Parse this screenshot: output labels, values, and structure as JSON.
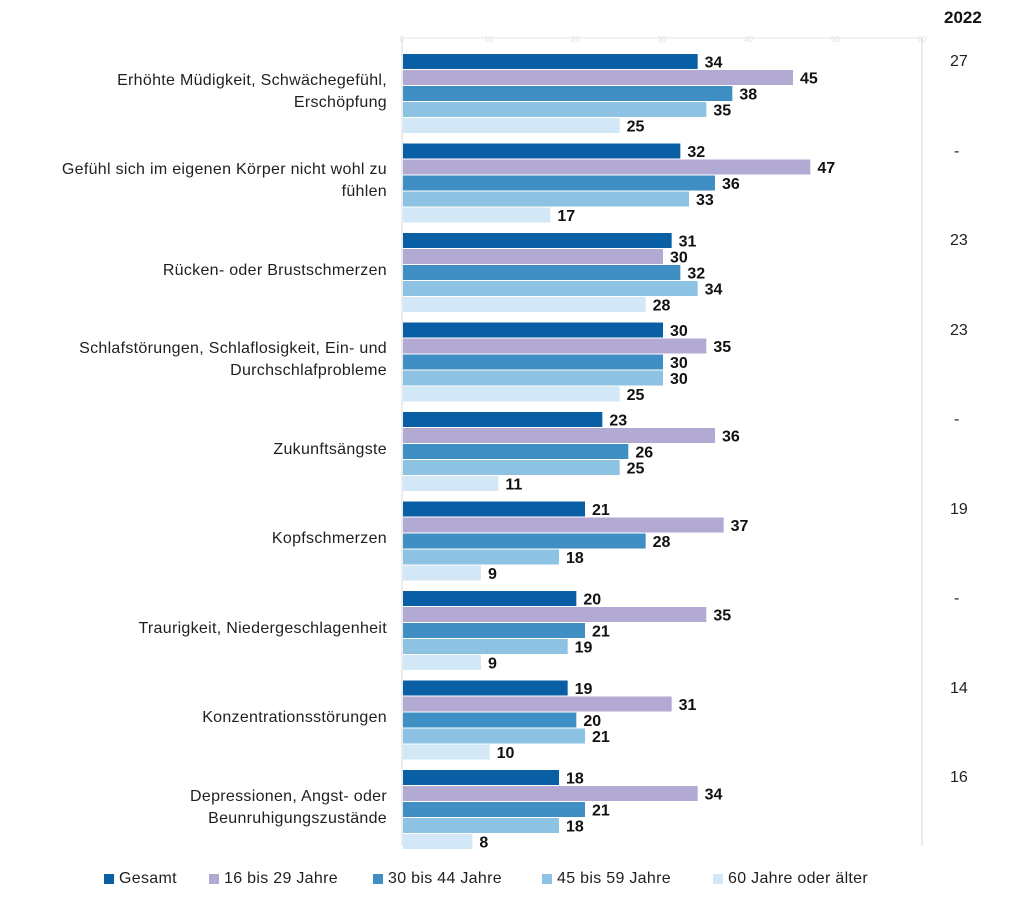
{
  "chart_data": {
    "type": "bar",
    "orientation": "horizontal",
    "title": "",
    "xlabel": "",
    "ylabel": "",
    "xlim": [
      0,
      60
    ],
    "x_ticks": [
      "0",
      "10",
      "20",
      "30",
      "40",
      "50",
      "60"
    ],
    "categories": [
      [
        "Erhöhte Müdigkeit, Schwächegefühl,",
        "Erschöpfung"
      ],
      [
        "Gefühl sich im eigenen Körper nicht wohl zu",
        "fühlen"
      ],
      [
        "Rücken- oder Brustschmerzen"
      ],
      [
        "Schlafstörungen, Schlaflosigkeit, Ein- und",
        "Durchschlafprobleme"
      ],
      [
        "Zukunftsängste"
      ],
      [
        "Kopfschmerzen"
      ],
      [
        "Traurigkeit, Niedergeschlagenheit"
      ],
      [
        "Konzentrationsstörungen"
      ],
      [
        "Depressionen, Angst- oder",
        "Beunruhigungszustände"
      ]
    ],
    "series": [
      {
        "name": "Gesamt",
        "color": "#0a5fa4",
        "values": [
          34,
          32,
          31,
          30,
          23,
          21,
          20,
          19,
          18
        ]
      },
      {
        "name": "16 bis 29 Jahre",
        "color": "#b3aad4",
        "values": [
          45,
          47,
          30,
          35,
          36,
          37,
          35,
          31,
          34
        ]
      },
      {
        "name": "30 bis 44 Jahre",
        "color": "#3f8fc4",
        "values": [
          38,
          36,
          32,
          30,
          26,
          28,
          21,
          20,
          21
        ]
      },
      {
        "name": "45 bis 59 Jahre",
        "color": "#8ec2e2",
        "values": [
          35,
          33,
          34,
          30,
          25,
          18,
          19,
          21,
          18
        ]
      },
      {
        "name": "60 Jahre oder älter",
        "color": "#d3e8f6",
        "values": [
          25,
          17,
          28,
          25,
          11,
          9,
          9,
          10,
          8
        ]
      }
    ],
    "year_column": {
      "header": "2022",
      "values": [
        "27",
        "-",
        "23",
        "23",
        "-",
        "19",
        "-",
        "14",
        "16"
      ]
    },
    "legend_position": "bottom"
  }
}
